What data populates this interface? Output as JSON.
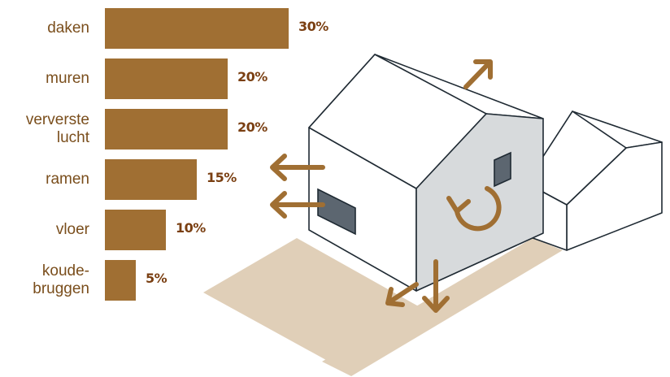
{
  "chart_data": {
    "type": "bar",
    "orientation": "horizontal",
    "categories": [
      "daken",
      "muren",
      "ververste\nlucht",
      "ramen",
      "vloer",
      "koude-\nbruggen"
    ],
    "values": [
      30,
      20,
      20,
      15,
      10,
      5
    ],
    "value_labels": [
      "30%",
      "20%",
      "20%",
      "15%",
      "10%",
      "5%"
    ],
    "xlim": [
      0,
      30
    ],
    "grid": false,
    "legend": "none"
  },
  "colors": {
    "bar": "#a06f33",
    "value_text": "#7a3f12",
    "category_text": "#7a4e1c",
    "arrow": "#a06f33",
    "ground": "#e0cfb8",
    "house_shade": "#d7dadc",
    "outline": "#1f2a33"
  },
  "illustration": {
    "icons": [
      "house-illustration",
      "heat-loss-arrow-icon",
      "ventilation-cycle-icon"
    ]
  }
}
